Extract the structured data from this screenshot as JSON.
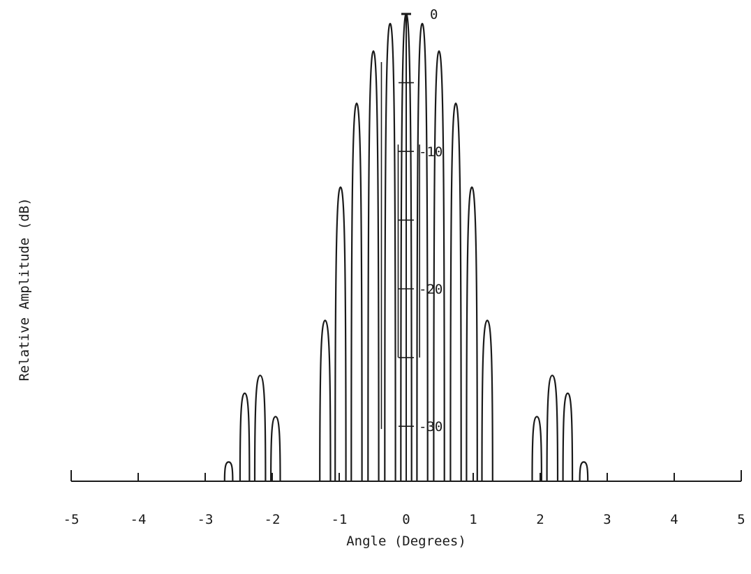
{
  "chart_data": {
    "type": "line",
    "title": "",
    "xlabel": "Angle (Degrees)",
    "ylabel": "Relative Amplitude (dB)",
    "xlim": [
      -5,
      5
    ],
    "ylim": [
      -34,
      0
    ],
    "x_ticks": [
      -5,
      -4,
      -3,
      -2,
      -1,
      0,
      1,
      2,
      3,
      4,
      5
    ],
    "x_tick_labels": [
      "-5",
      "-4",
      "-3",
      "-2",
      "-1",
      "0",
      "1",
      "2",
      "3",
      "4",
      "5"
    ],
    "y_ticks": [
      0,
      -5,
      -10,
      -15,
      -20,
      -25,
      -30
    ],
    "y_tick_labels": [
      {
        "value": 0,
        "label": "0"
      },
      {
        "value": -10,
        "label": "-10"
      },
      {
        "value": -20,
        "label": "-20"
      },
      {
        "value": -30,
        "label": "-30"
      }
    ],
    "y_axis_position_x": 0,
    "grid": false,
    "series": [
      {
        "style": "lobes",
        "lobes": [
          {
            "center": -2.65,
            "width": 0.06,
            "peak": -32.6
          },
          {
            "center": -2.41,
            "width": 0.07,
            "peak": -27.6
          },
          {
            "center": -2.18,
            "width": 0.08,
            "peak": -26.3
          },
          {
            "center": -1.95,
            "width": 0.07,
            "peak": -29.3
          },
          {
            "center": -1.21,
            "width": 0.08,
            "peak": -22.3
          },
          {
            "center": -0.98,
            "width": 0.08,
            "peak": -12.6
          },
          {
            "center": -0.74,
            "width": 0.08,
            "peak": -6.5
          },
          {
            "center": -0.49,
            "width": 0.08,
            "peak": -2.7
          },
          {
            "center": -0.24,
            "width": 0.08,
            "peak": -0.7
          },
          {
            "center": 0.0,
            "width": 0.08,
            "peak": 0
          },
          {
            "center": 0.24,
            "width": 0.08,
            "peak": -0.7
          },
          {
            "center": 0.49,
            "width": 0.08,
            "peak": -2.7
          },
          {
            "center": 0.74,
            "width": 0.08,
            "peak": -6.5
          },
          {
            "center": 0.98,
            "width": 0.08,
            "peak": -12.6
          },
          {
            "center": 1.21,
            "width": 0.08,
            "peak": -22.3
          },
          {
            "center": 1.95,
            "width": 0.07,
            "peak": -29.3
          },
          {
            "center": 2.18,
            "width": 0.08,
            "peak": -26.3
          },
          {
            "center": 2.41,
            "width": 0.07,
            "peak": -27.6
          },
          {
            "center": 2.65,
            "width": 0.06,
            "peak": -32.6
          }
        ],
        "extra_lines": [
          {
            "x": -0.37,
            "y_top": -3.5,
            "y_bottom": -30.2
          },
          {
            "x": -0.12,
            "y_top": -9.5,
            "y_bottom": -25.0
          },
          {
            "x": 0.2,
            "y_top": -9.5,
            "y_bottom": -25.0
          }
        ]
      }
    ]
  }
}
